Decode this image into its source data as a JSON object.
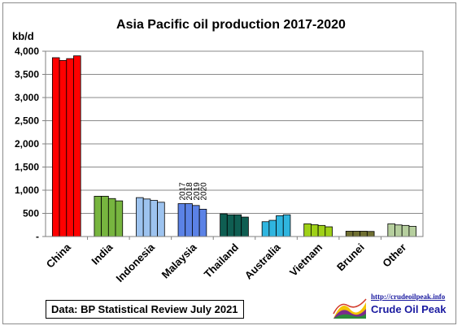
{
  "chart_data": {
    "type": "bar",
    "title": "Asia Pacific oil production 2017-2020",
    "ylabel": "kb/d",
    "ylim": [
      0,
      4000
    ],
    "yticks": [
      "-",
      "500",
      "1,000",
      "1,500",
      "2,000",
      "2,500",
      "3,000",
      "3,500",
      "4,000"
    ],
    "grid": true,
    "years": [
      "2017",
      "2018",
      "2019",
      "2020"
    ],
    "categories": [
      "China",
      "India",
      "Indonesia",
      "Malaysia",
      "Thailand",
      "Australia",
      "Vietnam",
      "Brunei",
      "Other"
    ],
    "colors": [
      "#ff0000",
      "#77b53f",
      "#9dc3ef",
      "#5b82e6",
      "#0f5e52",
      "#2fb5df",
      "#9fd117",
      "#6f6f31",
      "#b6cf9e"
    ],
    "series": [
      {
        "values": [
          3860,
          870,
          840,
          710,
          490,
          320,
          275,
          115,
          275
        ]
      },
      {
        "values": [
          3800,
          870,
          810,
          710,
          470,
          350,
          255,
          115,
          250
        ]
      },
      {
        "values": [
          3840,
          820,
          780,
          670,
          470,
          450,
          240,
          115,
          240
        ]
      },
      {
        "values": [
          3900,
          770,
          740,
          590,
          420,
          470,
          210,
          110,
          220
        ]
      }
    ]
  },
  "source_note": "Data: BP Statistical Review July 2021",
  "logo": {
    "url_text": "http://crudeoilpeak.info",
    "name": "Crude Oil Peak"
  }
}
